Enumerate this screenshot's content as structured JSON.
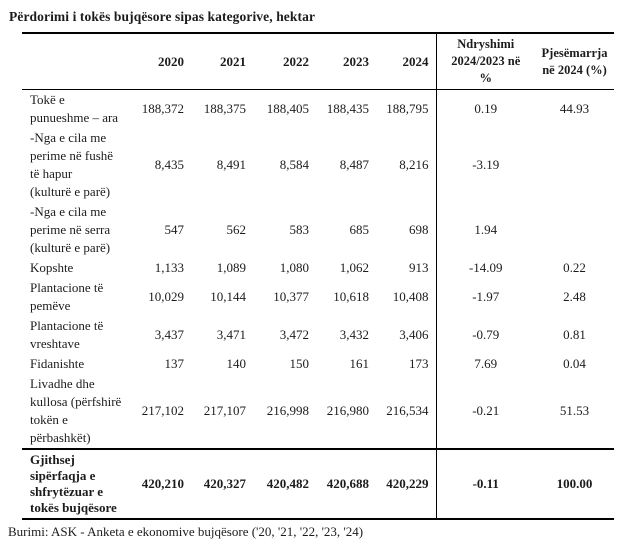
{
  "title": "Përdorimi i tokës bujqësore sipas kategorive, hektar",
  "table": {
    "header": {
      "years": [
        "2020",
        "2021",
        "2022",
        "2023",
        "2024"
      ],
      "change_label": "Ndryshimi\n2024/2023 në\n%",
      "share_label": "Pjesëmarrja\nnë  2024 (%)"
    },
    "rows": [
      {
        "label": "Tokë e\npunueshme – ara",
        "values": [
          "188,372",
          "188,375",
          "188,405",
          "188,435",
          "188,795"
        ],
        "change": "0.19",
        "share": "44.93"
      },
      {
        "label": "-Nga e cila me\nperime në fushë\ntë  hapur\n(kulturë e parë)",
        "values": [
          "8,435",
          "8,491",
          "8,584",
          "8,487",
          "8,216"
        ],
        "change": "-3.19",
        "share": ""
      },
      {
        "label": "-Nga e cila me\nperime në serra\n(kulturë e parë)",
        "values": [
          "547",
          "562",
          "583",
          "685",
          "698"
        ],
        "change": "1.94",
        "share": ""
      },
      {
        "label": "Kopshte",
        "values": [
          "1,133",
          "1,089",
          "1,080",
          "1,062",
          "913"
        ],
        "change": "-14.09",
        "share": "0.22"
      },
      {
        "label": "Plantacione të\npemëve",
        "values": [
          "10,029",
          "10,144",
          "10,377",
          "10,618",
          "10,408"
        ],
        "change": "-1.97",
        "share": "2.48"
      },
      {
        "label": "Plantacione të\nvreshtave",
        "values": [
          "3,437",
          "3,471",
          "3,472",
          "3,432",
          "3,406"
        ],
        "change": "-0.79",
        "share": "0.81"
      },
      {
        "label": "Fidanishte",
        "values": [
          "137",
          "140",
          "150",
          "161",
          "173"
        ],
        "change": "7.69",
        "share": "0.04"
      },
      {
        "label": "Livadhe dhe\nkullosa (përfshirë\ntokën e\npërbashkët)",
        "values": [
          "217,102",
          "217,107",
          "216,998",
          "216,980",
          "216,534"
        ],
        "change": "-0.21",
        "share": "51.53"
      }
    ],
    "total": {
      "label": "Gjithsej\nsipërfaqja e\nshfrytëzuar e\ntokës bujqësore",
      "values": [
        "420,210",
        "420,327",
        "420,482",
        "420,688",
        "420,229"
      ],
      "change": "-0.11",
      "share": "100.00"
    }
  },
  "source": "Burimi:  ASK - Anketa e ekonomive bujqësore ('20, '21, '22, '23, '24)"
}
